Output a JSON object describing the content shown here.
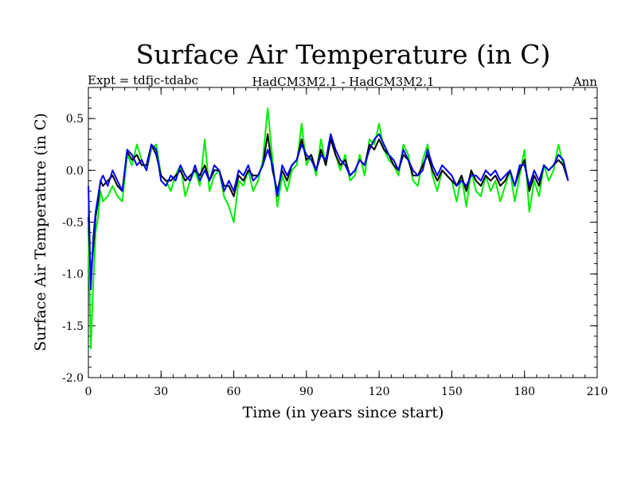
{
  "chart_data": {
    "type": "line",
    "title": "Surface Air Temperature (in C)",
    "subtitle_left": "Expt = tdfjc-tdabc",
    "subtitle_center": "HadCM3M2.1 - HadCM3M2.1",
    "subtitle_right": "Ann",
    "xlabel": "Time (in years since start)",
    "ylabel": "Surface Air Temperature (in C)",
    "xlim": [
      0,
      210
    ],
    "ylim": [
      -2.0,
      0.8
    ],
    "x_ticks": [
      0,
      30,
      60,
      90,
      120,
      150,
      180,
      210
    ],
    "x_tick_labels": [
      "0",
      "30",
      "60",
      "90",
      "120",
      "150",
      "180",
      "210"
    ],
    "y_ticks": [
      -2.0,
      -1.5,
      -1.0,
      -0.5,
      0.0,
      0.5
    ],
    "y_tick_labels": [
      "-2.0",
      "-1.5",
      "-1.0",
      "-0.5",
      "0.0",
      "0.5"
    ],
    "x_minor_step": 5,
    "y_minor_step": 0.1,
    "grid": false,
    "series": [
      {
        "name": "green",
        "color": "#00ee00",
        "x": [
          0,
          1,
          2,
          3,
          4,
          5,
          6,
          8,
          10,
          12,
          14,
          16,
          18,
          20,
          22,
          24,
          26,
          28,
          30,
          32,
          34,
          36,
          38,
          40,
          42,
          44,
          46,
          48,
          50,
          52,
          54,
          56,
          58,
          60,
          62,
          64,
          66,
          68,
          70,
          72,
          74,
          76,
          78,
          80,
          82,
          84,
          86,
          88,
          90,
          92,
          94,
          96,
          98,
          100,
          102,
          104,
          106,
          108,
          110,
          112,
          114,
          116,
          118,
          120,
          122,
          124,
          126,
          128,
          130,
          132,
          134,
          136,
          138,
          140,
          142,
          144,
          146,
          148,
          150,
          152,
          154,
          156,
          158,
          160,
          162,
          164,
          166,
          168,
          170,
          172,
          174,
          176,
          178,
          180,
          182,
          184,
          186,
          188,
          190,
          192,
          194,
          196,
          198
        ],
        "y": [
          -0.55,
          -1.72,
          -1.1,
          -0.6,
          -0.45,
          -0.2,
          -0.3,
          -0.25,
          -0.15,
          -0.25,
          -0.3,
          0.15,
          0.05,
          0.25,
          0.1,
          0.0,
          0.2,
          0.25,
          -0.05,
          -0.1,
          -0.2,
          -0.05,
          0.05,
          -0.25,
          -0.1,
          0.0,
          -0.15,
          0.3,
          -0.2,
          -0.05,
          0.0,
          -0.25,
          -0.35,
          -0.5,
          -0.1,
          -0.15,
          0.0,
          -0.2,
          -0.1,
          0.1,
          0.6,
          0.1,
          -0.35,
          -0.05,
          -0.2,
          0.0,
          0.05,
          0.45,
          0.05,
          0.15,
          -0.05,
          0.3,
          0.05,
          0.35,
          0.15,
          0.0,
          0.15,
          -0.1,
          -0.05,
          0.15,
          -0.05,
          0.3,
          0.25,
          0.45,
          0.2,
          0.1,
          0.05,
          -0.05,
          0.25,
          0.15,
          -0.1,
          -0.15,
          0.1,
          0.25,
          -0.05,
          -0.2,
          0.0,
          -0.05,
          -0.1,
          -0.3,
          -0.05,
          -0.35,
          0.0,
          -0.2,
          -0.25,
          -0.05,
          -0.2,
          -0.1,
          -0.3,
          -0.15,
          0.0,
          -0.3,
          -0.05,
          0.2,
          -0.4,
          -0.1,
          -0.25,
          0.05,
          -0.1,
          0.0,
          0.25,
          0.05,
          -0.1
        ]
      },
      {
        "name": "black",
        "color": "#000000",
        "x": [
          0,
          1,
          2,
          3,
          4,
          5,
          6,
          8,
          10,
          12,
          14,
          16,
          18,
          20,
          22,
          24,
          26,
          28,
          30,
          32,
          34,
          36,
          38,
          40,
          42,
          44,
          46,
          48,
          50,
          52,
          54,
          56,
          58,
          60,
          62,
          64,
          66,
          68,
          70,
          72,
          74,
          76,
          78,
          80,
          82,
          84,
          86,
          88,
          90,
          92,
          94,
          96,
          98,
          100,
          102,
          104,
          106,
          108,
          110,
          112,
          114,
          116,
          118,
          120,
          122,
          124,
          126,
          128,
          130,
          132,
          134,
          136,
          138,
          140,
          142,
          144,
          146,
          148,
          150,
          152,
          154,
          156,
          158,
          160,
          162,
          164,
          166,
          168,
          170,
          172,
          174,
          176,
          178,
          180,
          182,
          184,
          186,
          188,
          190,
          192,
          194,
          196,
          198
        ],
        "y": [
          -0.45,
          -1.05,
          -0.75,
          -0.45,
          -0.3,
          -0.1,
          -0.15,
          -0.1,
          -0.05,
          -0.15,
          -0.2,
          0.18,
          0.1,
          0.15,
          0.05,
          0.05,
          0.25,
          0.15,
          -0.05,
          -0.1,
          -0.1,
          -0.05,
          0.0,
          -0.1,
          -0.05,
          0.0,
          -0.05,
          0.05,
          -0.1,
          0.0,
          0.0,
          -0.15,
          -0.15,
          -0.25,
          -0.05,
          -0.1,
          0.0,
          -0.05,
          -0.05,
          0.05,
          0.35,
          0.0,
          -0.2,
          0.0,
          -0.1,
          0.05,
          0.1,
          0.3,
          0.1,
          0.15,
          0.0,
          0.2,
          0.05,
          0.3,
          0.15,
          0.05,
          0.1,
          -0.05,
          0.0,
          0.1,
          0.05,
          0.25,
          0.2,
          0.3,
          0.2,
          0.15,
          0.05,
          0.0,
          0.15,
          0.1,
          -0.05,
          -0.05,
          0.05,
          0.15,
          0.0,
          -0.1,
          0.0,
          -0.05,
          -0.1,
          -0.15,
          -0.05,
          -0.2,
          0.0,
          -0.1,
          -0.15,
          -0.05,
          -0.1,
          -0.05,
          -0.15,
          -0.1,
          0.0,
          -0.15,
          0.0,
          0.1,
          -0.2,
          -0.05,
          -0.15,
          0.05,
          0.0,
          0.05,
          0.1,
          0.05,
          -0.1
        ]
      },
      {
        "name": "blue",
        "color": "#0000ee",
        "x": [
          0,
          1,
          2,
          3,
          4,
          5,
          6,
          8,
          10,
          12,
          14,
          16,
          18,
          20,
          22,
          24,
          26,
          28,
          30,
          32,
          34,
          36,
          38,
          40,
          42,
          44,
          46,
          48,
          50,
          52,
          54,
          56,
          58,
          60,
          62,
          64,
          66,
          68,
          70,
          72,
          74,
          76,
          78,
          80,
          82,
          84,
          86,
          88,
          90,
          92,
          94,
          96,
          98,
          100,
          102,
          104,
          106,
          108,
          110,
          112,
          114,
          116,
          118,
          120,
          122,
          124,
          126,
          128,
          130,
          132,
          134,
          136,
          138,
          140,
          142,
          144,
          146,
          148,
          150,
          152,
          154,
          156,
          158,
          160,
          162,
          164,
          166,
          168,
          170,
          172,
          174,
          176,
          178,
          180,
          182,
          184,
          186,
          188,
          190,
          192,
          194,
          196,
          198
        ],
        "y": [
          -0.15,
          -1.15,
          -0.65,
          -0.4,
          -0.25,
          -0.1,
          -0.05,
          -0.15,
          0.0,
          -0.1,
          -0.2,
          0.2,
          0.15,
          0.05,
          0.1,
          0.0,
          0.25,
          0.2,
          -0.1,
          -0.15,
          -0.05,
          -0.1,
          0.05,
          -0.05,
          -0.1,
          0.05,
          -0.1,
          0.0,
          -0.1,
          0.05,
          0.0,
          -0.2,
          -0.1,
          -0.2,
          0.0,
          -0.05,
          0.05,
          -0.1,
          -0.05,
          0.05,
          0.2,
          0.05,
          -0.25,
          0.05,
          -0.05,
          0.05,
          0.1,
          0.25,
          0.15,
          0.1,
          0.0,
          0.15,
          0.1,
          0.35,
          0.2,
          0.1,
          0.05,
          -0.05,
          0.0,
          0.1,
          0.05,
          0.2,
          0.3,
          0.35,
          0.25,
          0.15,
          0.1,
          0.0,
          0.2,
          0.1,
          0.0,
          -0.05,
          0.0,
          0.2,
          0.05,
          -0.05,
          0.05,
          0.0,
          -0.05,
          -0.15,
          -0.1,
          -0.15,
          -0.05,
          -0.05,
          -0.1,
          0.0,
          -0.05,
          0.0,
          -0.1,
          -0.05,
          0.0,
          -0.15,
          0.05,
          0.05,
          -0.15,
          0.0,
          -0.1,
          0.05,
          0.0,
          0.05,
          0.15,
          0.1,
          -0.1
        ]
      }
    ]
  }
}
